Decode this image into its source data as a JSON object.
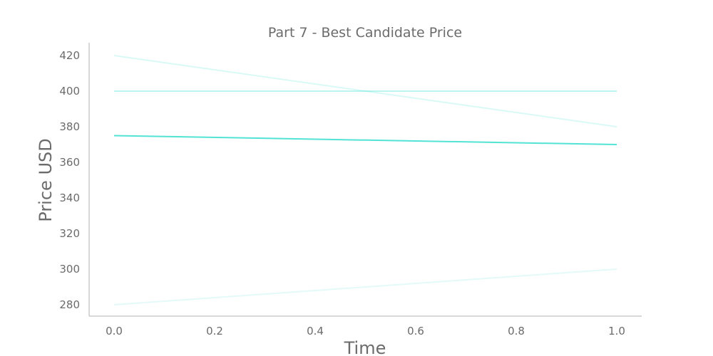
{
  "chart_data": {
    "type": "line",
    "title": "Part 7 - Best Candidate Price",
    "xlabel": "Time",
    "ylabel": "Price USD",
    "xlim": [
      -0.05,
      1.05
    ],
    "ylim": [
      272.5,
      427.5
    ],
    "x_ticks": [
      0.0,
      0.2,
      0.4,
      0.6,
      0.8,
      1.0
    ],
    "x_tick_labels": [
      "0.0",
      "0.2",
      "0.4",
      "0.6",
      "0.8",
      "1.0"
    ],
    "y_ticks": [
      280,
      300,
      320,
      340,
      360,
      380,
      400,
      420
    ],
    "y_tick_labels": [
      "280",
      "300",
      "320",
      "340",
      "360",
      "380",
      "400",
      "420"
    ],
    "grid": false,
    "legend": "none",
    "series": [
      {
        "x": [
          0.0,
          1.0
        ],
        "values": [
          420,
          380
        ],
        "color": "#40e0d0",
        "opacity": 0.2
      },
      {
        "x": [
          0.0,
          1.0
        ],
        "values": [
          400,
          400
        ],
        "color": "#40e0d0",
        "opacity": 0.35
      },
      {
        "x": [
          0.0,
          1.0
        ],
        "values": [
          375,
          370
        ],
        "color": "#40e0d0",
        "opacity": 0.9
      },
      {
        "x": [
          0.0,
          1.0
        ],
        "values": [
          280,
          300
        ],
        "color": "#40e0d0",
        "opacity": 0.15
      }
    ],
    "colors": {
      "axis": "#cccccc",
      "text": "#6b6b6b",
      "line": "#40e0d0"
    }
  }
}
